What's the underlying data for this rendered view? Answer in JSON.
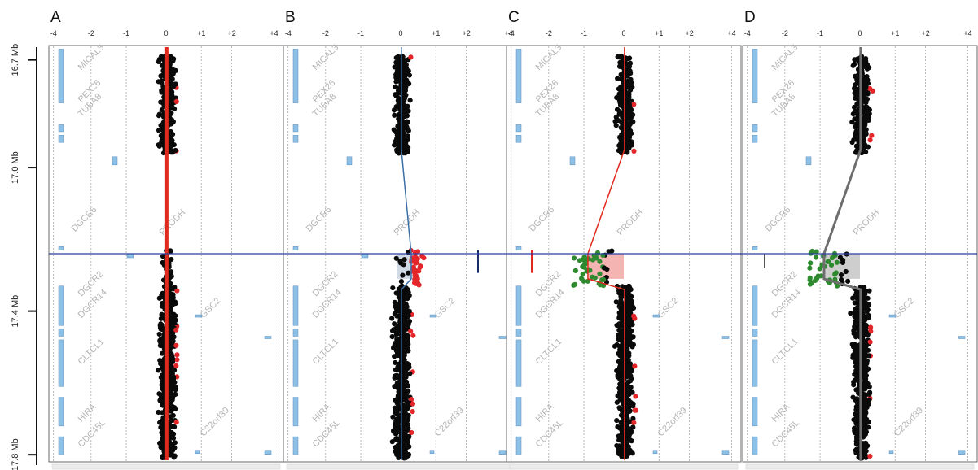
{
  "chart_data": {
    "type": "scatter",
    "y_axis": {
      "ticks": [
        {
          "label": "16.7 Mb",
          "value": 16.7
        },
        {
          "label": "17.0 Mb",
          "value": 17.0
        },
        {
          "label": "17.4 Mb",
          "value": 17.4
        },
        {
          "label": "17.8 Mb",
          "value": 17.8
        }
      ],
      "range": [
        16.66,
        17.82
      ]
    },
    "x_axis": {
      "tick_labels": [
        "-4",
        "-2",
        "-1",
        "0",
        "+1",
        "+2",
        "+4"
      ],
      "range": [
        -4,
        4
      ]
    },
    "genes": [
      {
        "name": "MICAL3",
        "pos": 16.73,
        "rot": -45
      },
      {
        "name": "PEX26",
        "pos": 16.82,
        "rot": -45
      },
      {
        "name": "TUBA8",
        "pos": 16.86,
        "rot": -45
      },
      {
        "name": "DGCR6",
        "pos": 17.18,
        "rot": -45
      },
      {
        "name": "PRODH",
        "pos": 17.19,
        "rot": -45
      },
      {
        "name": "DGCR2",
        "pos": 17.36,
        "rot": -45
      },
      {
        "name": "DGCR14",
        "pos": 17.42,
        "rot": -45
      },
      {
        "name": "GSC2",
        "pos": 17.42,
        "rot": -45
      },
      {
        "name": "CLTCL1",
        "pos": 17.55,
        "rot": -45
      },
      {
        "name": "HIRA",
        "pos": 17.71,
        "rot": -45
      },
      {
        "name": "CDC45L",
        "pos": 17.78,
        "rot": -45
      },
      {
        "name": "C22orf39",
        "pos": 17.75,
        "rot": -45
      }
    ],
    "highlight_line_mb": 17.24,
    "panels": [
      {
        "label": "A",
        "segment_color": "#e02a1e",
        "segment_style": "flat",
        "deletion_start": null,
        "deletion_end": null,
        "deletion_level": 0.0,
        "shade_color": null
      },
      {
        "label": "B",
        "segment_color": "#3b6fa8",
        "segment_style": "gain",
        "deletion_start": 17.24,
        "deletion_end": 17.31,
        "deletion_level": 0.3,
        "shade_color": "#c8d4e0"
      },
      {
        "label": "C",
        "segment_color": "#e02a1e",
        "segment_style": "loss",
        "deletion_start": 17.24,
        "deletion_end": 17.31,
        "deletion_level": -0.9,
        "shade_color": "#f2a8a4"
      },
      {
        "label": "D",
        "segment_color": "#6e6e6e",
        "segment_style": "loss",
        "deletion_start": 17.24,
        "deletion_end": 17.31,
        "deletion_level": -0.9,
        "shade_color": "#c6c6c6"
      }
    ],
    "point_colors": {
      "normal": "#0a0a0a",
      "gain": "#e3262a",
      "loss": "#2f8a2f"
    }
  }
}
